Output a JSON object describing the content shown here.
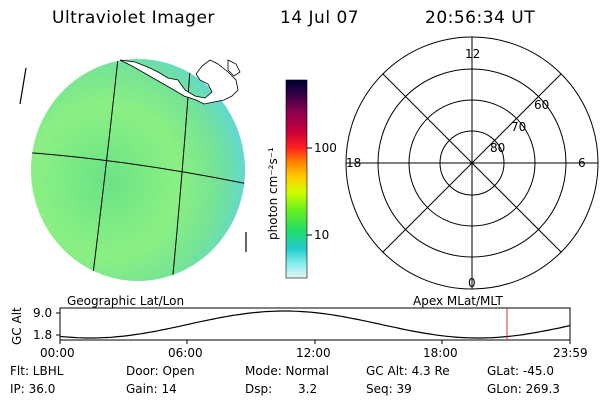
{
  "header": {
    "title": "Ultraviolet Imager",
    "date": "14 Jul 07",
    "time": "20:56:34 UT"
  },
  "image_panel": {
    "label": "Geographic Lat/Lon"
  },
  "colorbar": {
    "unit_label": "photon cm⁻²s⁻¹",
    "ticks": [
      "100",
      "10"
    ],
    "colors": [
      "#000033",
      "#3a0045",
      "#8b0050",
      "#c8003a",
      "#ff2020",
      "#ff8800",
      "#ffcc00",
      "#ccff00",
      "#66ee22",
      "#22dd66",
      "#22cccc",
      "#88eeee",
      "#e8f4f4"
    ]
  },
  "polar_plot": {
    "label": "Apex MLat/MLT",
    "mlt_labels": {
      "top": "12",
      "left": "18",
      "right": "6",
      "bottom": "0"
    },
    "lat_labels": [
      "60",
      "70",
      "80"
    ]
  },
  "altitude_plot": {
    "ylabel": "GC Alt",
    "yticks": [
      "9.0",
      "1.8"
    ],
    "xticks": [
      "00:00",
      "06:00",
      "12:00",
      "18:00",
      "23:59"
    ],
    "marker_color": "#cc3333"
  },
  "info": {
    "filter": "Flt: LBHL",
    "ip": "IP: 36.0",
    "door": "Door: Open",
    "gain": "Gain: 14",
    "mode": "Mode: Normal",
    "dsp": "Dsp:",
    "dsp_value": "3.2",
    "gc_alt": "GC Alt: 4.3 Re",
    "seq": "Seq: 39",
    "glat": "GLat: -45.0",
    "glon": "GLon: 269.3"
  }
}
